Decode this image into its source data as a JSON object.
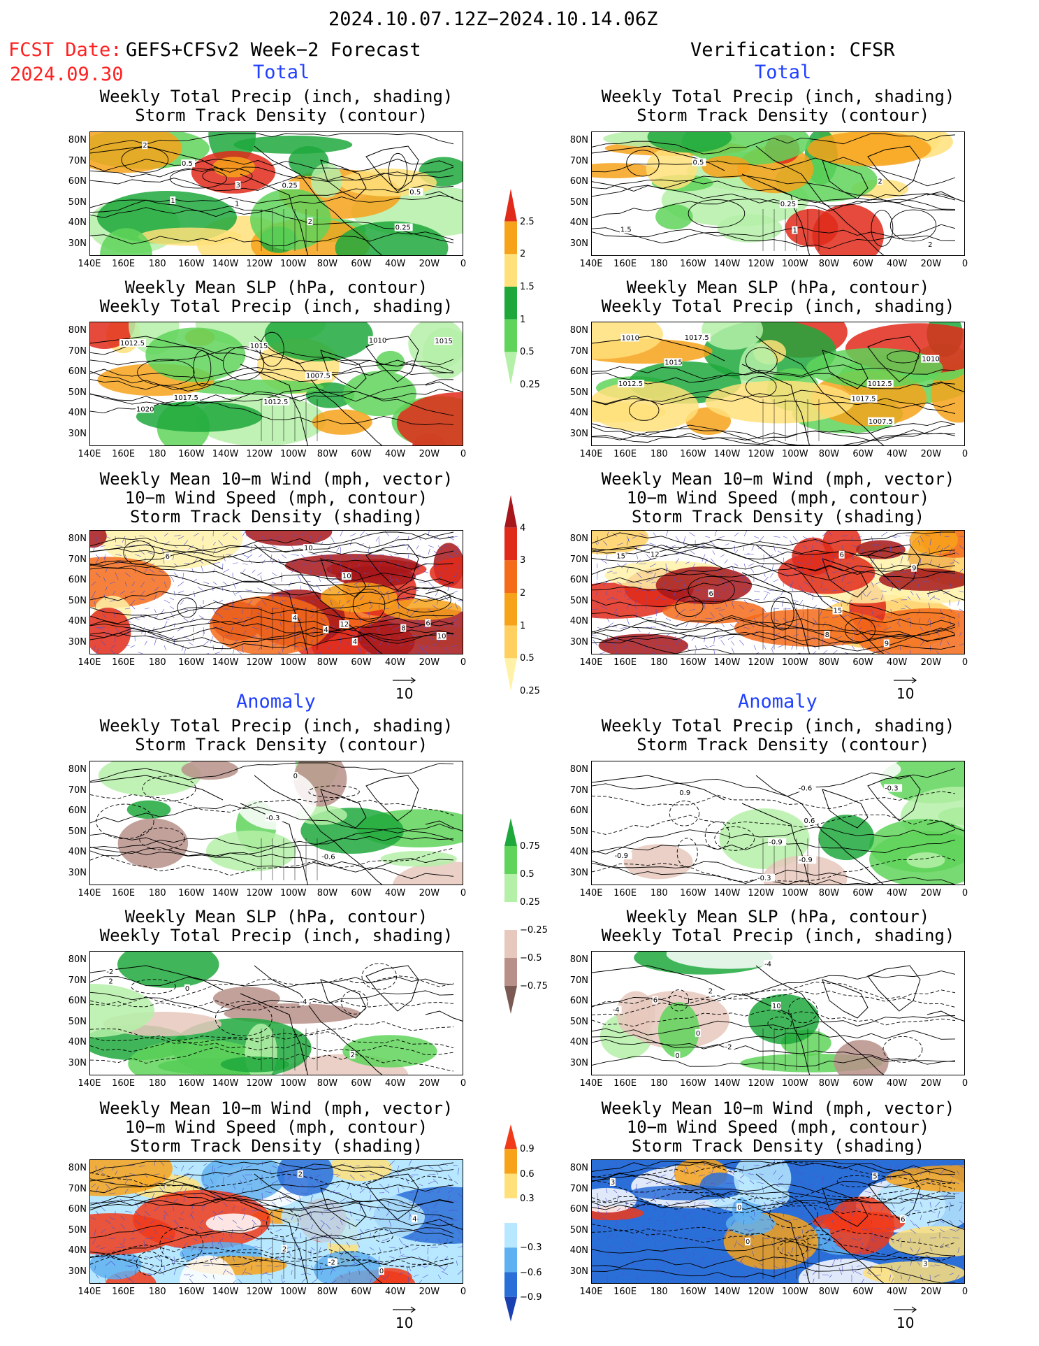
{
  "header": {
    "date_range": "2024.10.07.12Z−2024.10.14.06Z",
    "fcst_date_label": "FCST Date:",
    "model_label": "GEFS+CFSv2 Week−2 Forecast",
    "fcst_date": "2024.09.30",
    "verification": "Verification: CFSR"
  },
  "sections": {
    "total": "Total",
    "anomaly": "Anomaly"
  },
  "panel_titles": {
    "precip_storm": "Weekly Total Precip (inch, shading)\n Storm Track Density (contour)",
    "slp_precip": "Weekly Mean SLP (hPa, contour)\nWeekly Total Precip (inch, shading)",
    "wind_storm": "Weekly Mean 10−m Wind (mph, vector)\n10−m Wind Speed (mph, contour)\nStorm Track Density (shading)"
  },
  "axes": {
    "lat_labels": [
      "80N",
      "70N",
      "60N",
      "50N",
      "40N",
      "30N"
    ],
    "lon_labels": [
      "140E",
      "160E",
      "180",
      "160W",
      "140W",
      "120W",
      "100W",
      "80W",
      "60W",
      "40W",
      "20W",
      "0"
    ]
  },
  "vector_ref": "10",
  "colorbars": {
    "total_precip": {
      "labels": [
        "2.5",
        "2",
        "1.5",
        "1",
        "0.5",
        "0.25"
      ],
      "colors": [
        "#e02a1a",
        "#f7a21b",
        "#ffe07a",
        "#1ea83c",
        "#5fd35a",
        "#b5f0a8"
      ]
    },
    "total_storm": {
      "labels": [
        "4",
        "3",
        "2",
        "1",
        "0.5",
        "0.25"
      ],
      "colors": [
        "#a6161a",
        "#e02a1a",
        "#f46b1a",
        "#f7a21b",
        "#ffd060",
        "#fff2a8"
      ]
    },
    "anom_precip": {
      "labels": [
        "0.75",
        "0.5",
        "0.25",
        "−0.25",
        "−0.5",
        "−0.75"
      ],
      "colors": [
        "#1ea83c",
        "#5fd35a",
        "#b5f0a8",
        "#ffffff",
        "#e6c8bc",
        "#b8908a",
        "#7a5a52"
      ]
    },
    "anom_storm": {
      "labels": [
        "0.9",
        "0.6",
        "0.3",
        "−0.3",
        "−0.6",
        "−0.9"
      ],
      "colors": [
        "#f03a1a",
        "#f7a21b",
        "#ffe07a",
        "#ffffff",
        "#b8e8ff",
        "#5fb0f0",
        "#2a6fd8",
        "#1a3fb0"
      ]
    }
  },
  "contour_labels": {
    "t_pr_fc": [
      "0.25",
      "0.5",
      "1",
      "2",
      "3",
      "0.25",
      "0.5",
      "1",
      "2"
    ],
    "t_pr_ob": [
      "1",
      "0.5",
      "2",
      "1.5",
      "0.25",
      "2"
    ],
    "t_slp_fc": [
      "1017.5",
      "1015",
      "1012.5",
      "1007.5",
      "1012.5",
      "1010",
      "1015",
      "1020"
    ],
    "t_slp_ob": [
      "1017.5",
      "1007.5",
      "1010",
      "1012.5",
      "1015",
      "1017.5",
      "1010",
      "1012.5"
    ],
    "t_wind_fc": [
      "8",
      "6",
      "4",
      "10",
      "12",
      "10",
      "4",
      "10",
      "6",
      "4"
    ],
    "t_wind_ob": [
      "9",
      "6",
      "12",
      "15",
      "9",
      "8",
      "6",
      "15"
    ],
    "a_pr_fc": [
      "0",
      "-0.3",
      "-0.6"
    ],
    "a_pr_ob": [
      "0.6",
      "-0.3",
      "0.9",
      "-0.9",
      "-0.9",
      "-0.6",
      "-0.3",
      "-0.9"
    ],
    "a_slp_fc": [
      "0",
      "-2",
      "2",
      "-4",
      "2"
    ],
    "a_slp_ob": [
      "0",
      "-2",
      "2",
      "-4",
      "6",
      "10",
      "0",
      "-4"
    ],
    "a_wind_fc": [
      "4",
      "2",
      "0",
      "2",
      "-2"
    ],
    "a_wind_ob": [
      "3",
      "6",
      "0",
      "3",
      "5",
      "0"
    ]
  }
}
